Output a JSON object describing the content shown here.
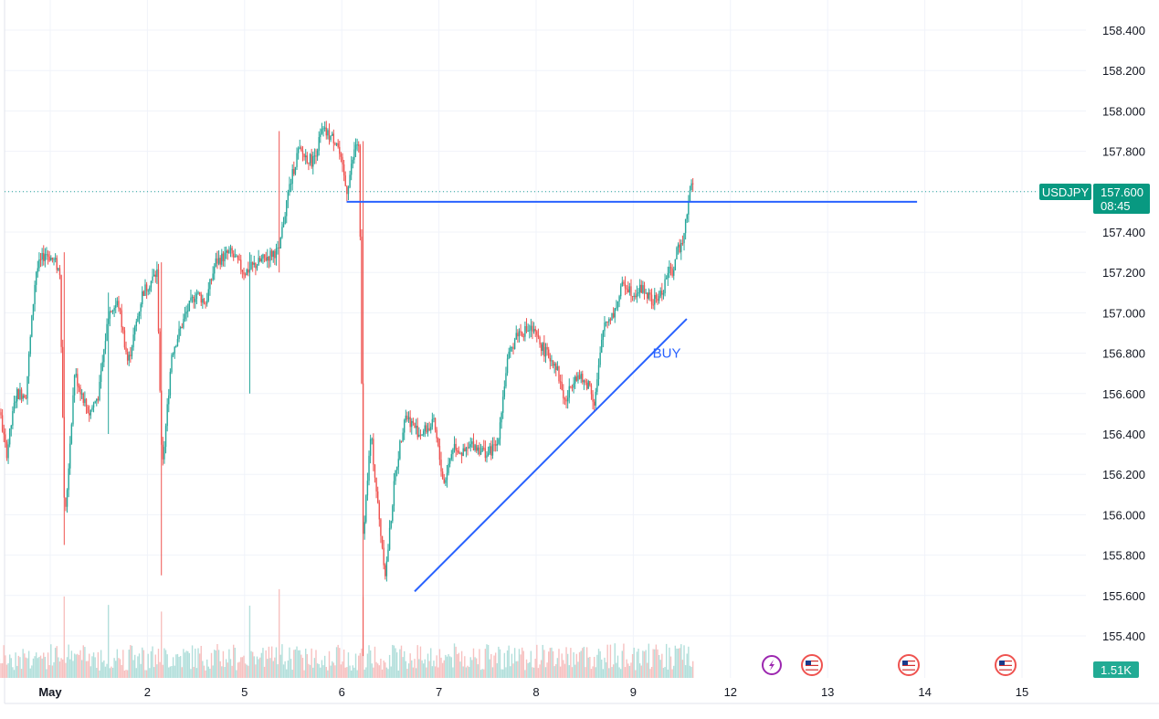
{
  "chart_data": {
    "type": "candlestick",
    "symbol": "USDJPY",
    "last_price": "157.600",
    "countdown": "08:45",
    "volume_label": "1.51K",
    "ylim": [
      155.25,
      158.55
    ],
    "y_ticks": [
      "158.400",
      "158.200",
      "158.000",
      "157.800",
      "157.600",
      "157.400",
      "157.200",
      "157.000",
      "156.800",
      "156.600",
      "156.400",
      "156.200",
      "156.000",
      "155.800",
      "155.600",
      "155.400"
    ],
    "x_ticks": [
      {
        "label": "May",
        "day": 1,
        "bold": true
      },
      {
        "label": "2",
        "day": 2
      },
      {
        "label": "5",
        "day": 3
      },
      {
        "label": "6",
        "day": 4
      },
      {
        "label": "7",
        "day": 5
      },
      {
        "label": "8",
        "day": 6
      },
      {
        "label": "9",
        "day": 7
      },
      {
        "label": "12",
        "day": 8
      },
      {
        "label": "13",
        "day": 9
      },
      {
        "label": "14",
        "day": 10
      },
      {
        "label": "15",
        "day": 11
      }
    ],
    "price_path": [
      [
        0.25,
        158.4
      ],
      [
        0.28,
        156.8
      ],
      [
        0.35,
        156.3
      ],
      [
        0.45,
        156.6
      ],
      [
        0.55,
        156.3
      ],
      [
        0.65,
        156.6
      ],
      [
        0.75,
        156.6
      ],
      [
        0.85,
        157.2
      ],
      [
        0.95,
        157.3
      ],
      [
        1.05,
        157.25
      ],
      [
        1.1,
        157.2
      ],
      [
        1.15,
        155.95
      ],
      [
        1.25,
        156.7
      ],
      [
        1.4,
        156.5
      ],
      [
        1.5,
        156.6
      ],
      [
        1.6,
        157.0
      ],
      [
        1.7,
        157.05
      ],
      [
        1.8,
        156.75
      ],
      [
        1.95,
        157.1
      ],
      [
        2.1,
        157.2
      ],
      [
        2.15,
        156.2
      ],
      [
        2.25,
        156.8
      ],
      [
        2.4,
        157.0
      ],
      [
        2.5,
        157.1
      ],
      [
        2.6,
        157.05
      ],
      [
        2.7,
        157.25
      ],
      [
        2.85,
        157.3
      ],
      [
        3.0,
        157.2
      ],
      [
        3.15,
        157.25
      ],
      [
        3.3,
        157.3
      ],
      [
        3.35,
        157.3
      ],
      [
        3.45,
        157.6
      ],
      [
        3.55,
        157.8
      ],
      [
        3.7,
        157.75
      ],
      [
        3.8,
        157.9
      ],
      [
        3.95,
        157.85
      ],
      [
        4.05,
        157.6
      ],
      [
        4.15,
        157.85
      ],
      [
        4.18,
        157.8
      ],
      [
        4.22,
        155.9
      ],
      [
        4.3,
        156.4
      ],
      [
        4.38,
        156.0
      ],
      [
        4.45,
        155.7
      ],
      [
        4.55,
        156.2
      ],
      [
        4.65,
        156.5
      ],
      [
        4.8,
        156.4
      ],
      [
        4.95,
        156.45
      ],
      [
        5.05,
        156.15
      ],
      [
        5.15,
        156.35
      ],
      [
        5.25,
        156.3
      ],
      [
        5.35,
        156.35
      ],
      [
        5.5,
        156.3
      ],
      [
        5.6,
        156.35
      ],
      [
        5.7,
        156.75
      ],
      [
        5.8,
        156.9
      ],
      [
        5.95,
        156.92
      ],
      [
        6.1,
        156.8
      ],
      [
        6.2,
        156.75
      ],
      [
        6.3,
        156.55
      ],
      [
        6.4,
        156.7
      ],
      [
        6.5,
        156.65
      ],
      [
        6.55,
        156.65
      ],
      [
        6.6,
        156.55
      ],
      [
        6.7,
        156.95
      ],
      [
        6.8,
        157.0
      ],
      [
        6.9,
        157.15
      ],
      [
        7.0,
        157.1
      ],
      [
        7.1,
        157.12
      ],
      [
        7.2,
        157.05
      ],
      [
        7.3,
        157.1
      ],
      [
        7.35,
        157.2
      ],
      [
        7.4,
        157.2
      ],
      [
        7.45,
        157.3
      ],
      [
        7.5,
        157.35
      ],
      [
        7.55,
        157.5
      ],
      [
        7.58,
        157.6
      ],
      [
        7.62,
        157.65
      ]
    ],
    "annotations": [
      {
        "type": "hline",
        "label": "",
        "x1": 4.05,
        "x2": 9.92,
        "y": 157.55,
        "color": "#2962ff"
      },
      {
        "type": "trendline",
        "label": "",
        "x1": 4.75,
        "y1": 155.62,
        "x2": 7.55,
        "y2": 156.97,
        "color": "#2962ff"
      },
      {
        "type": "text",
        "label": "BUY",
        "x": 7.2,
        "y": 156.8,
        "color": "#2962ff"
      }
    ],
    "events": [
      "lightning",
      "us-flag",
      "us-flag",
      "us-flag"
    ],
    "colors": {
      "up": "#26a69a",
      "down": "#ef5350",
      "line": "#2962ff",
      "event": "#9c27b0",
      "price_badge": "#089981"
    }
  }
}
